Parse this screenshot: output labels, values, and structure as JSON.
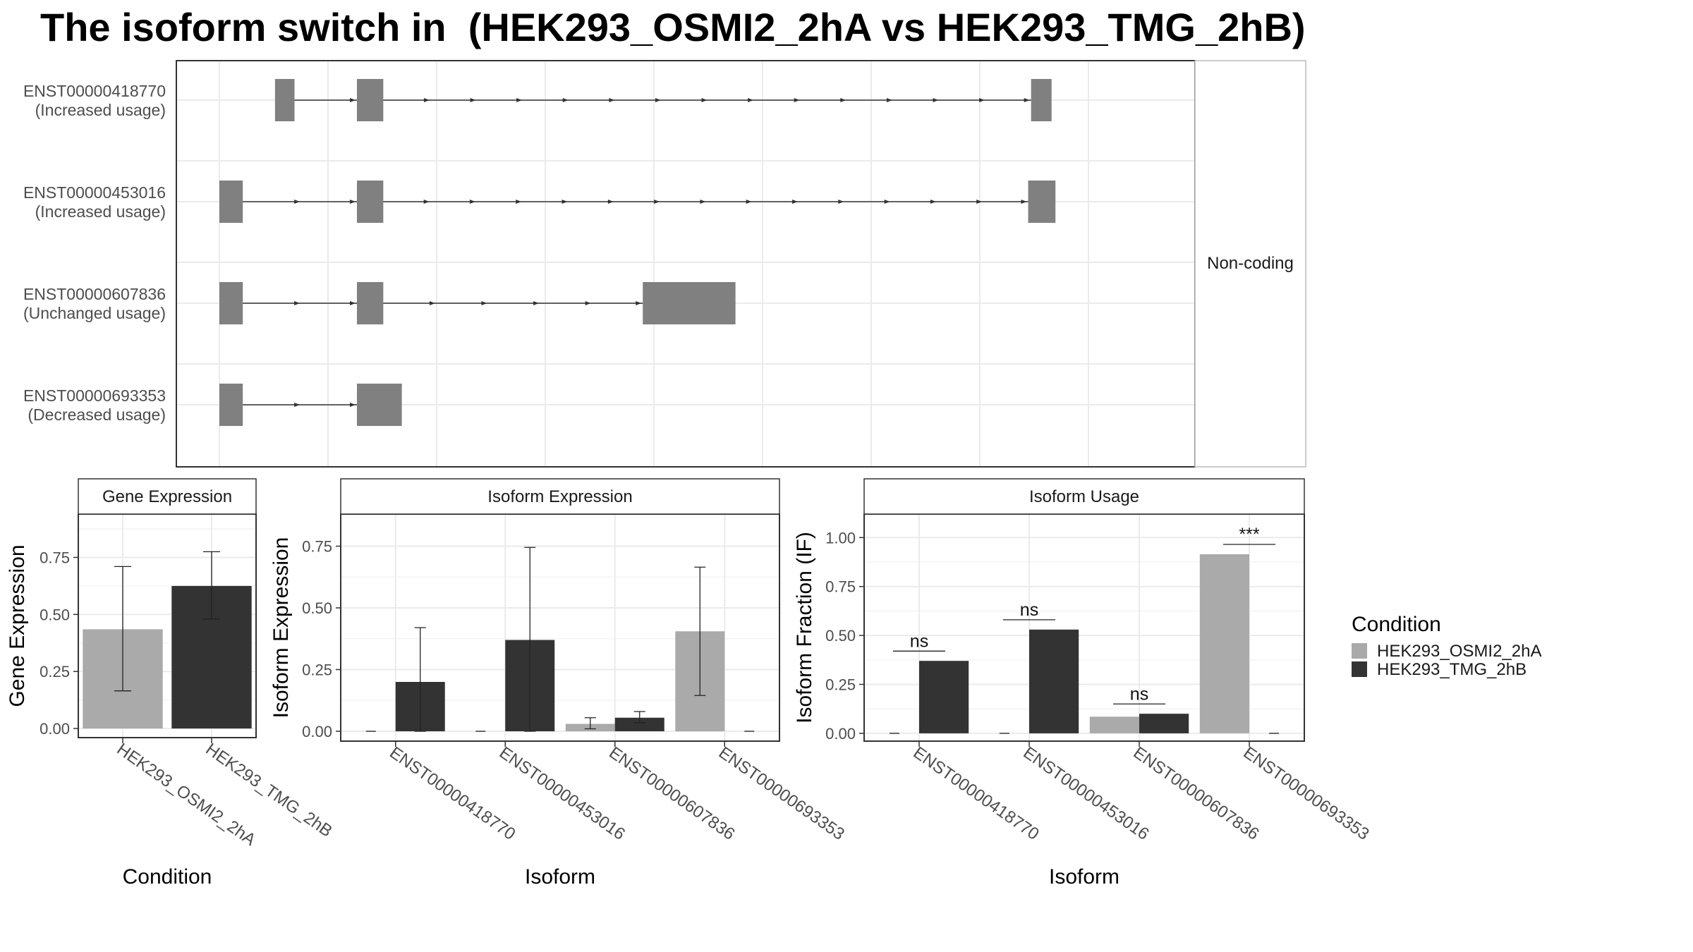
{
  "title": "The isoform switch in  (HEK293_OSMI2_2hA vs HEK293_TMG_2hB)",
  "colors": {
    "condition_a": "#aaaaaa",
    "condition_b": "#333333",
    "exon": "#808080",
    "grid": "#ebebeb",
    "frame": "#333333",
    "strip_border": "#333333"
  },
  "chart_data": [
    {
      "type": "transcript_structure",
      "facet_label": "Non-coding",
      "transcripts": [
        {
          "id": "ENST00000418770",
          "usage": "(Increased usage)",
          "exons": [
            [
              0.057,
              0.077
            ],
            [
              0.141,
              0.168
            ],
            [
              0.832,
              0.853
            ]
          ]
        },
        {
          "id": "ENST00000453016",
          "usage": "(Increased usage)",
          "exons": [
            [
              0.0,
              0.024
            ],
            [
              0.141,
              0.168
            ],
            [
              0.829,
              0.857
            ]
          ]
        },
        {
          "id": "ENST00000607836",
          "usage": "(Unchanged usage)",
          "exons": [
            [
              0.0,
              0.024
            ],
            [
              0.141,
              0.168
            ],
            [
              0.434,
              0.529
            ]
          ]
        },
        {
          "id": "ENST00000693353",
          "usage": "(Decreased usage)",
          "exons": [
            [
              0.0,
              0.024
            ],
            [
              0.141,
              0.187
            ]
          ]
        }
      ]
    },
    {
      "type": "bar",
      "strip": "Gene Expression",
      "xlabel": "Condition",
      "ylabel": "Gene Expression",
      "ylim": [
        -0.04,
        0.94
      ],
      "yticks": [
        "0.00",
        "0.25",
        "0.50",
        "0.75"
      ],
      "categories": [
        "HEK293_OSMI2_2hA",
        "HEK293_TMG_2hB"
      ],
      "values": [
        0.435,
        0.625
      ],
      "errors": [
        [
          0.165,
          0.71
        ],
        [
          0.48,
          0.775
        ]
      ],
      "conditions": [
        "a",
        "b"
      ]
    },
    {
      "type": "bar",
      "strip": "Isoform Expression",
      "xlabel": "Isoform",
      "ylabel": "Isoform Expression",
      "ylim": [
        -0.04,
        0.88
      ],
      "yticks": [
        "0.00",
        "0.25",
        "0.50",
        "0.75"
      ],
      "categories": [
        "ENST00000418770",
        "ENST00000453016",
        "ENST00000607836",
        "ENST00000693353"
      ],
      "series": [
        {
          "name": "HEK293_OSMI2_2hA",
          "values": [
            0.0,
            0.0,
            0.03,
            0.405
          ],
          "errors": [
            [
              0.0,
              0.0
            ],
            [
              0.0,
              0.0
            ],
            [
              0.01,
              0.055
            ],
            [
              0.145,
              0.665
            ]
          ]
        },
        {
          "name": "HEK293_TMG_2hB",
          "values": [
            0.2,
            0.37,
            0.055,
            0.0
          ],
          "errors": [
            [
              0.0,
              0.42
            ],
            [
              0.0,
              0.745
            ],
            [
              0.035,
              0.08
            ],
            [
              0.0,
              0.0
            ]
          ]
        }
      ]
    },
    {
      "type": "bar",
      "strip": "Isoform Usage",
      "xlabel": "Isoform",
      "ylabel": "Isoform Fraction (IF)",
      "ylim": [
        -0.04,
        1.12
      ],
      "yticks": [
        "0.00",
        "0.25",
        "0.50",
        "0.75",
        "1.00"
      ],
      "categories": [
        "ENST00000418770",
        "ENST00000453016",
        "ENST00000607836",
        "ENST00000693353"
      ],
      "series": [
        {
          "name": "HEK293_OSMI2_2hA",
          "values": [
            0.0,
            0.0,
            0.085,
            0.915
          ]
        },
        {
          "name": "HEK293_TMG_2hB",
          "values": [
            0.37,
            0.53,
            0.1,
            0.0
          ]
        }
      ],
      "annotations": [
        {
          "text": "ns",
          "y": 0.42
        },
        {
          "text": "ns",
          "y": 0.58
        },
        {
          "text": "ns",
          "y": 0.15
        },
        {
          "text": "***",
          "y": 0.965
        }
      ]
    }
  ],
  "legend": {
    "title": "Condition",
    "entries": [
      "HEK293_OSMI2_2hA",
      "HEK293_TMG_2hB"
    ]
  }
}
